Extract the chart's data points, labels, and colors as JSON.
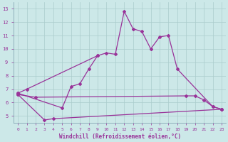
{
  "xlabel": "Windchill (Refroidissement éolien,°C)",
  "bg_color": "#cce8e8",
  "grid_color": "#aacccc",
  "line_color": "#993399",
  "xlim": [
    -0.5,
    23.5
  ],
  "ylim": [
    4.5,
    13.5
  ],
  "yticks": [
    5,
    6,
    7,
    8,
    9,
    10,
    11,
    12,
    13
  ],
  "xticks": [
    0,
    1,
    2,
    3,
    4,
    5,
    6,
    7,
    8,
    9,
    10,
    11,
    12,
    13,
    14,
    15,
    16,
    17,
    18,
    19,
    20,
    21,
    22,
    23
  ],
  "line1_x": [
    0,
    1,
    9,
    10,
    11,
    12,
    13,
    14,
    15,
    16,
    17,
    18,
    22,
    23
  ],
  "line1_y": [
    6.7,
    7.0,
    9.5,
    9.7,
    9.6,
    12.8,
    11.5,
    11.3,
    10.0,
    10.9,
    11.0,
    8.5,
    5.7,
    5.5
  ],
  "line2_x": [
    0,
    5,
    6,
    7,
    8,
    9
  ],
  "line2_y": [
    6.7,
    5.6,
    7.2,
    7.4,
    8.5,
    9.5
  ],
  "line3_x": [
    0,
    2,
    19,
    20,
    21,
    22,
    23
  ],
  "line3_y": [
    6.6,
    6.4,
    6.5,
    6.5,
    6.2,
    5.7,
    5.5
  ],
  "line4_x": [
    0,
    3,
    4,
    23
  ],
  "line4_y": [
    6.6,
    4.7,
    4.8,
    5.5
  ]
}
